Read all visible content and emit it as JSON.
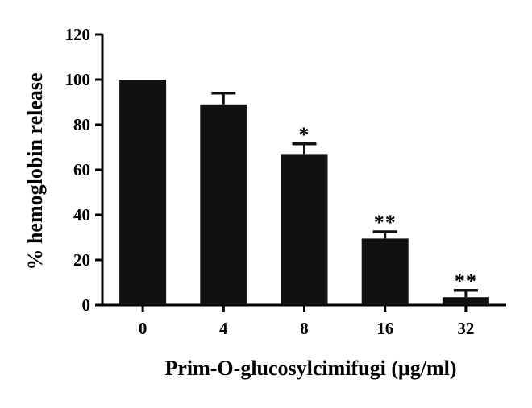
{
  "chart_data": {
    "type": "bar",
    "xlabel": "Prim-O-glucosylcimifugi (μg/ml)",
    "ylabel": "% hemoglobin release",
    "categories": [
      "0",
      "4",
      "8",
      "16",
      "32"
    ],
    "values": [
      100,
      89,
      67,
      29.5,
      3.5
    ],
    "error": [
      0,
      5,
      4.5,
      3,
      3
    ],
    "annotations": [
      "",
      "",
      "*",
      "**",
      "**"
    ],
    "ylim": [
      0,
      120
    ],
    "yticks": [
      0,
      20,
      40,
      60,
      80,
      100,
      120
    ],
    "bar_color": "#111111",
    "grid": false,
    "legend": "none"
  }
}
